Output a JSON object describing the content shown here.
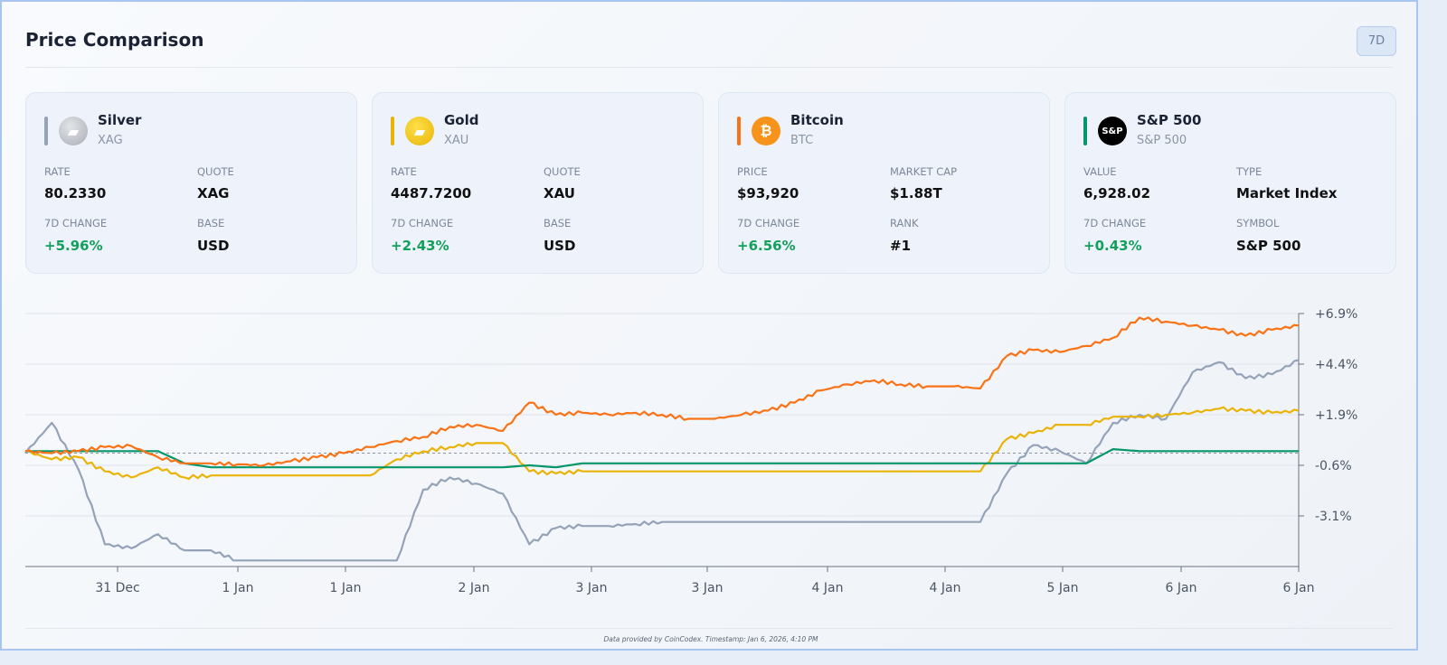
{
  "header": {
    "title": "Price Comparison",
    "range_button": "7D"
  },
  "cards": [
    {
      "name": "Silver",
      "symbol": "XAG",
      "icon": "silver-bar-icon",
      "color": "#94a3b8",
      "l1": "RATE",
      "v1": "80.2330",
      "l2": "QUOTE",
      "v2": "XAG",
      "l3": "7D CHANGE",
      "v3": "+5.96%",
      "l4": "BASE",
      "v4": "USD"
    },
    {
      "name": "Gold",
      "symbol": "XAU",
      "icon": "gold-bar-icon",
      "color": "#eab308",
      "l1": "RATE",
      "v1": "4487.7200",
      "l2": "QUOTE",
      "v2": "XAU",
      "l3": "7D CHANGE",
      "v3": "+2.43%",
      "l4": "BASE",
      "v4": "USD"
    },
    {
      "name": "Bitcoin",
      "symbol": "BTC",
      "icon": "bitcoin-icon",
      "color": "#f97316",
      "l1": "PRICE",
      "v1": "$93,920",
      "l2": "MARKET CAP",
      "v2": "$1.88T",
      "l3": "7D CHANGE",
      "v3": "+6.56%",
      "l4": "RANK",
      "v4": "#1"
    },
    {
      "name": "S&P 500",
      "symbol": "S&P 500",
      "icon": "sp500-icon",
      "color": "#059669",
      "l1": "VALUE",
      "v1": "6,928.02",
      "l2": "TYPE",
      "v2": "Market Index",
      "l3": "7D CHANGE",
      "v3": "+0.43%",
      "l4": "SYMBOL",
      "v4": "S&P 500"
    }
  ],
  "icon_text": {
    "bitcoin": "₿",
    "sp500": "S&P"
  },
  "footer": "Data provided by CoinCodex. Timestamp: Jan 6, 2026, 4:10 PM",
  "chart_data": {
    "type": "line",
    "ylim": [
      -5.6,
      6.9
    ],
    "y_ticks": [
      "+6.9%",
      "+4.4%",
      "+1.9%",
      "-0.6%",
      "-3.1%"
    ],
    "y_tick_values": [
      6.9,
      4.4,
      1.9,
      -0.6,
      -3.1
    ],
    "x_ticks": [
      "31 Dec",
      "1 Jan",
      "1 Jan",
      "2 Jan",
      "3 Jan",
      "3 Jan",
      "4 Jan",
      "4 Jan",
      "5 Jan",
      "6 Jan",
      "6 Jan"
    ],
    "baseline": 0,
    "grid": true,
    "series": [
      {
        "key": "silver",
        "color": "#94a3b8",
        "values": [
          0,
          1.5,
          -0.8,
          -4.5,
          -4.7,
          -4.0,
          -4.8,
          -4.8,
          -5.3,
          -5.3,
          -5.3,
          -5.3,
          -5.3,
          -5.3,
          -5.3,
          -1.8,
          -1.2,
          -1.5,
          -2.0,
          -4.5,
          -3.7,
          -3.6,
          -3.6,
          -3.5,
          -3.4,
          -3.4,
          -3.4,
          -3.4,
          -3.4,
          -3.4,
          -3.4,
          -3.4,
          -3.4,
          -3.4,
          -3.4,
          -3.4,
          -3.4,
          -1.0,
          0.4,
          0.1,
          -0.5,
          1.5,
          1.9,
          1.7,
          4.0,
          4.5,
          3.7,
          3.9,
          4.6
        ]
      },
      {
        "key": "gold",
        "color": "#eab308",
        "values": [
          0.1,
          -0.3,
          -0.2,
          -0.9,
          -1.2,
          -0.7,
          -1.2,
          -1.1,
          -1.1,
          -1.1,
          -1.1,
          -1.1,
          -1.1,
          -1.1,
          -0.3,
          0.1,
          0.3,
          0.5,
          0.5,
          -0.9,
          -1.0,
          -0.9,
          -0.9,
          -0.9,
          -0.9,
          -0.9,
          -0.9,
          -0.9,
          -0.9,
          -0.9,
          -0.9,
          -0.9,
          -0.9,
          -0.9,
          -0.9,
          -0.9,
          -0.9,
          0.7,
          1.0,
          1.4,
          1.4,
          1.8,
          1.8,
          1.9,
          2.0,
          2.2,
          2.1,
          2.0,
          2.1
        ]
      },
      {
        "key": "sp500",
        "color": "#059669",
        "values": [
          0.1,
          0.1,
          0.1,
          0.1,
          0.1,
          0.1,
          -0.5,
          -0.7,
          -0.7,
          -0.7,
          -0.7,
          -0.7,
          -0.7,
          -0.7,
          -0.7,
          -0.7,
          -0.7,
          -0.7,
          -0.7,
          -0.6,
          -0.7,
          -0.5,
          -0.5,
          -0.5,
          -0.5,
          -0.5,
          -0.5,
          -0.5,
          -0.5,
          -0.5,
          -0.5,
          -0.5,
          -0.5,
          -0.5,
          -0.5,
          -0.5,
          -0.5,
          -0.5,
          -0.5,
          -0.5,
          -0.5,
          0.2,
          0.1,
          0.1,
          0.1,
          0.1,
          0.1,
          0.1,
          0.1
        ]
      },
      {
        "key": "bitcoin",
        "color": "#f97316",
        "values": [
          0.1,
          0,
          0.1,
          0.3,
          0.35,
          -0.2,
          -0.5,
          -0.5,
          -0.55,
          -0.6,
          -0.4,
          -0.2,
          0,
          0.3,
          0.6,
          0.8,
          1.3,
          1.4,
          1.1,
          2.5,
          1.9,
          2.0,
          1.9,
          2.0,
          1.9,
          1.7,
          1.7,
          1.9,
          2.1,
          2.5,
          3.1,
          3.4,
          3.6,
          3.4,
          3.3,
          3.3,
          3.2,
          4.8,
          5.1,
          5.0,
          5.3,
          5.7,
          6.7,
          6.5,
          6.3,
          6.1,
          5.8,
          6.1,
          6.3
        ]
      }
    ]
  }
}
